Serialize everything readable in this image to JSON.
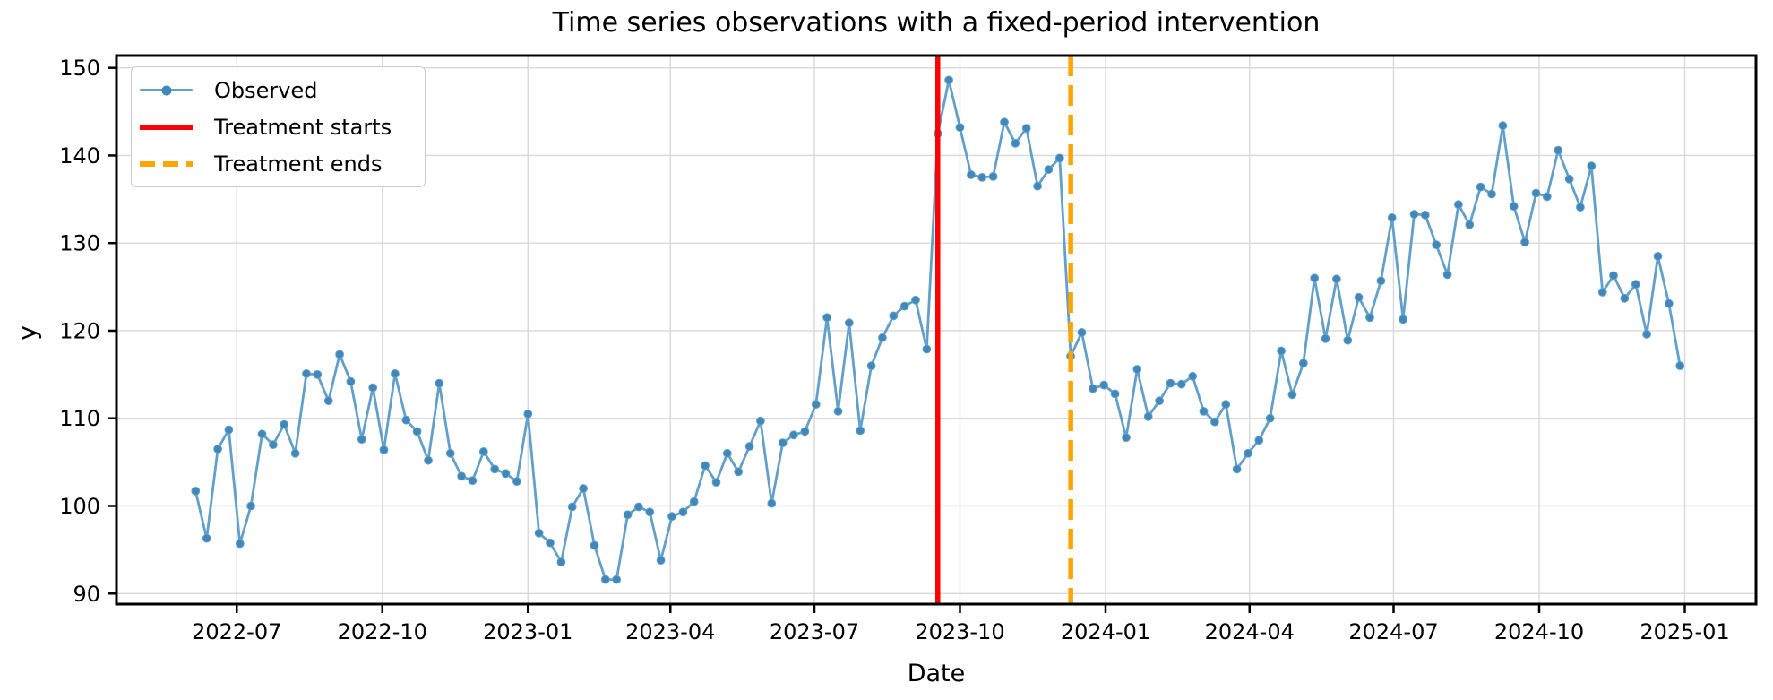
{
  "title": "Time series observations with a fixed-period intervention",
  "axes": {
    "xlabel": "Date",
    "ylabel": "y"
  },
  "legend": {
    "position": "upper left",
    "entries": [
      {
        "label": "Observed",
        "type": "line-with-marker",
        "color": "#62a0ca",
        "marker_color": "#4287b9"
      },
      {
        "label": "Treatment starts",
        "type": "solid-line",
        "color": "#ff0000"
      },
      {
        "label": "Treatment ends",
        "type": "dashed-line",
        "color": "#ffa500"
      }
    ]
  },
  "chart_data": {
    "type": "line",
    "title": "Time series observations with a fixed-period intervention",
    "xlabel": "Date",
    "ylabel": "y",
    "grid": true,
    "legend_position": "upper left",
    "xlim_dates": [
      "2022-04-16",
      "2025-02-15"
    ],
    "ylim": [
      88.8,
      151.4
    ],
    "y_ticks": [
      90,
      100,
      110,
      120,
      130,
      140,
      150
    ],
    "x_ticks": [
      {
        "label": "2022-07",
        "date": "2022-07-01"
      },
      {
        "label": "2022-10",
        "date": "2022-10-01"
      },
      {
        "label": "2023-01",
        "date": "2023-01-01"
      },
      {
        "label": "2023-04",
        "date": "2023-04-01"
      },
      {
        "label": "2023-07",
        "date": "2023-07-01"
      },
      {
        "label": "2023-10",
        "date": "2023-10-01"
      },
      {
        "label": "2024-01",
        "date": "2024-01-01"
      },
      {
        "label": "2024-04",
        "date": "2024-04-01"
      },
      {
        "label": "2024-07",
        "date": "2024-07-01"
      },
      {
        "label": "2024-10",
        "date": "2024-10-01"
      },
      {
        "label": "2025-01",
        "date": "2025-01-01"
      }
    ],
    "series": [
      {
        "name": "Observed",
        "start_date": "2022-06-05",
        "interval_days": 7,
        "values": [
          101.7,
          96.3,
          106.5,
          108.7,
          95.7,
          100.0,
          108.2,
          107.0,
          109.3,
          106.0,
          115.1,
          115.0,
          112.0,
          117.3,
          114.2,
          107.6,
          113.5,
          106.4,
          115.1,
          109.8,
          108.5,
          105.2,
          114.0,
          106.0,
          103.4,
          102.9,
          106.2,
          104.2,
          103.7,
          102.8,
          110.5,
          96.9,
          95.8,
          93.6,
          99.9,
          102.0,
          95.5,
          91.6,
          91.6,
          99.0,
          99.9,
          99.3,
          93.8,
          98.8,
          99.3,
          100.5,
          104.6,
          102.7,
          106.0,
          103.9,
          106.8,
          109.7,
          100.3,
          107.2,
          108.1,
          108.5,
          111.6,
          121.5,
          110.8,
          120.9,
          108.6,
          116.0,
          119.2,
          121.7,
          122.8,
          123.5,
          117.9,
          142.5,
          148.6,
          143.2,
          137.8,
          137.5,
          137.6,
          143.8,
          141.4,
          143.1,
          136.5,
          138.4,
          139.7,
          117.1,
          119.8,
          113.4,
          113.8,
          112.8,
          107.8,
          115.6,
          110.2,
          112.0,
          114.0,
          113.9,
          114.8,
          110.8,
          109.6,
          111.6,
          104.2,
          106.0,
          107.5,
          110.0,
          117.7,
          112.7,
          116.3,
          126.0,
          119.1,
          125.9,
          118.9,
          123.8,
          121.5,
          125.7,
          132.9,
          121.3,
          133.3,
          133.2,
          129.8,
          126.4,
          134.4,
          132.1,
          136.4,
          135.6,
          143.4,
          134.2,
          130.1,
          135.7,
          135.3,
          140.6,
          137.3,
          134.1,
          138.8,
          124.4,
          126.3,
          123.7,
          125.3,
          119.6,
          128.5,
          123.1,
          116.0
        ]
      }
    ],
    "events": [
      {
        "name": "Treatment starts",
        "date": "2023-09-17",
        "color": "#ff0000",
        "style": "solid"
      },
      {
        "name": "Treatment ends",
        "date": "2023-12-10",
        "color": "#ffa500",
        "style": "dashed"
      }
    ],
    "colors": {
      "observed_line": "#62a0ca",
      "observed_marker": "#4287b9",
      "treatment_start": "#ff0000",
      "treatment_end": "#ffa500",
      "grid": "#d8d8d8",
      "spine": "#000000"
    }
  }
}
